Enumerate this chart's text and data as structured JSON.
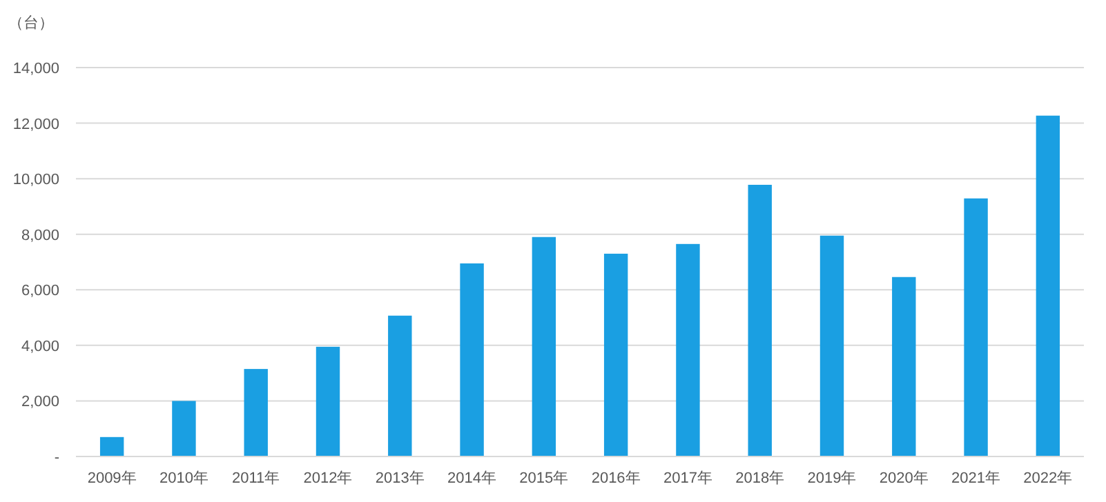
{
  "chart_data": {
    "type": "bar",
    "ylabel": "（台）",
    "categories": [
      "2009年",
      "2010年",
      "2011年",
      "2012年",
      "2013年",
      "2014年",
      "2015年",
      "2016年",
      "2017年",
      "2018年",
      "2019年",
      "2020年",
      "2021年",
      "2022年"
    ],
    "values": [
      700,
      2000,
      3150,
      3950,
      5070,
      6950,
      7900,
      7300,
      7650,
      9780,
      7950,
      6460,
      9290,
      12270
    ],
    "color": "#1a9fe2",
    "ylim": [
      0,
      14000
    ],
    "yticks": [
      {
        "value": 0,
        "label": "-"
      },
      {
        "value": 2000,
        "label": "2,000"
      },
      {
        "value": 4000,
        "label": "4,000"
      },
      {
        "value": 6000,
        "label": "6,000"
      },
      {
        "value": 8000,
        "label": "8,000"
      },
      {
        "value": 10000,
        "label": "10,000"
      },
      {
        "value": 12000,
        "label": "12,000"
      },
      {
        "value": 14000,
        "label": "14,000"
      }
    ],
    "grid": "y"
  }
}
